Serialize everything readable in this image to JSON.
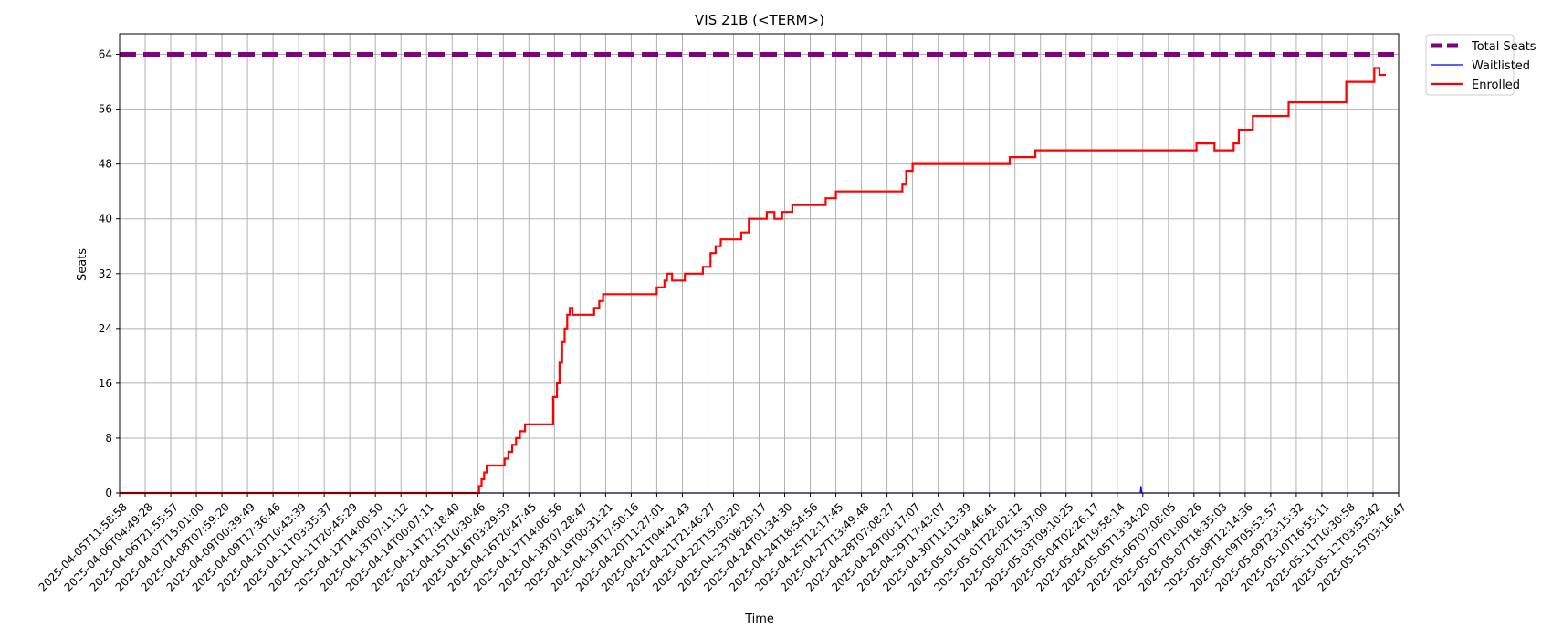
{
  "chart_data": {
    "type": "line",
    "title": "VIS 21B (<TERM>)",
    "xlabel": "Time",
    "ylabel": "Seats",
    "ylim": [
      0,
      67
    ],
    "yticks": [
      0,
      8,
      16,
      24,
      32,
      40,
      48,
      56,
      64
    ],
    "grid": true,
    "legend_position": "outside-top-right",
    "x_ticks": [
      "2025-04-05T11:58:58",
      "2025-04-06T04:49:28",
      "2025-04-06T21:55:57",
      "2025-04-07T15:01:00",
      "2025-04-08T07:59:20",
      "2025-04-09T00:39:49",
      "2025-04-09T17:36:46",
      "2025-04-10T10:43:39",
      "2025-04-11T03:35:37",
      "2025-04-11T20:45:29",
      "2025-04-12T14:00:50",
      "2025-04-13T07:11:12",
      "2025-04-14T00:07:11",
      "2025-04-14T17:18:40",
      "2025-04-15T10:30:46",
      "2025-04-16T03:29:59",
      "2025-04-16T20:47:45",
      "2025-04-17T14:06:56",
      "2025-04-18T07:28:47",
      "2025-04-19T00:31:21",
      "2025-04-19T17:50:16",
      "2025-04-20T11:27:01",
      "2025-04-21T04:42:43",
      "2025-04-21T21:46:27",
      "2025-04-22T15:03:20",
      "2025-04-23T08:29:17",
      "2025-04-24T01:34:30",
      "2025-04-24T18:54:56",
      "2025-04-25T12:17:45",
      "2025-04-27T13:49:48",
      "2025-04-28T07:08:27",
      "2025-04-29T00:17:07",
      "2025-04-29T17:43:07",
      "2025-04-30T11:13:39",
      "2025-05-01T04:46:41",
      "2025-05-01T22:02:12",
      "2025-05-02T15:37:00",
      "2025-05-03T09:10:25",
      "2025-05-04T02:26:17",
      "2025-05-04T19:58:14",
      "2025-05-05T13:34:20",
      "2025-05-06T07:08:05",
      "2025-05-07T01:00:26",
      "2025-05-07T18:35:03",
      "2025-05-08T12:14:36",
      "2025-05-09T05:53:57",
      "2025-05-09T23:15:32",
      "2025-05-10T16:55:11",
      "2025-05-11T10:30:58",
      "2025-05-12T03:53:42",
      "2025-05-15T03:16:47"
    ],
    "series": [
      {
        "name": "Total Seats",
        "color": "#800080",
        "style": "dashed",
        "x": [
          0,
          50
        ],
        "values": [
          64,
          64
        ]
      },
      {
        "name": "Waitlisted",
        "color": "#0000ff",
        "style": "solid",
        "x": [
          0,
          39.9,
          39.93,
          39.96,
          50
        ],
        "values": [
          0,
          0,
          1,
          0,
          0
        ]
      },
      {
        "name": "Enrolled",
        "color": "#ff0000",
        "style": "steps",
        "x": [
          0,
          14.05,
          14.15,
          14.25,
          14.35,
          14.5,
          15.05,
          15.2,
          15.35,
          15.5,
          15.65,
          15.85,
          16.8,
          16.95,
          17.1,
          17.2,
          17.3,
          17.4,
          17.5,
          17.6,
          17.7,
          17.85,
          18.55,
          18.75,
          18.9,
          19.0,
          19.1,
          19.2,
          20.2,
          21.0,
          21.1,
          21.2,
          21.3,
          21.4,
          21.6,
          22.1,
          22.6,
          22.8,
          23.1,
          23.3,
          23.5,
          24.3,
          24.6,
          25.3,
          25.6,
          25.9,
          26.3,
          27.3,
          27.6,
          28.0,
          29.0,
          30.6,
          30.75,
          31.0,
          34.5,
          34.8,
          35.8,
          37.5,
          42.1,
          42.8,
          43.55,
          43.75,
          44.0,
          44.3,
          44.55,
          45.7,
          47.95,
          49.05,
          49.25,
          49.5
        ],
        "values": [
          0,
          1,
          2,
          3,
          4,
          4,
          5,
          6,
          7,
          8,
          9,
          10,
          10,
          14,
          16,
          19,
          22,
          24,
          26,
          27,
          26,
          26,
          27,
          28,
          29,
          29,
          29,
          29,
          29,
          30,
          30,
          30,
          31,
          32,
          31,
          32,
          32,
          33,
          35,
          36,
          37,
          38,
          40,
          41,
          40,
          41,
          42,
          42,
          43,
          44,
          44,
          45,
          47,
          48,
          48,
          49,
          50,
          50,
          51,
          50,
          51,
          53,
          53,
          55,
          55,
          57,
          60,
          62,
          61,
          61
        ]
      }
    ]
  }
}
